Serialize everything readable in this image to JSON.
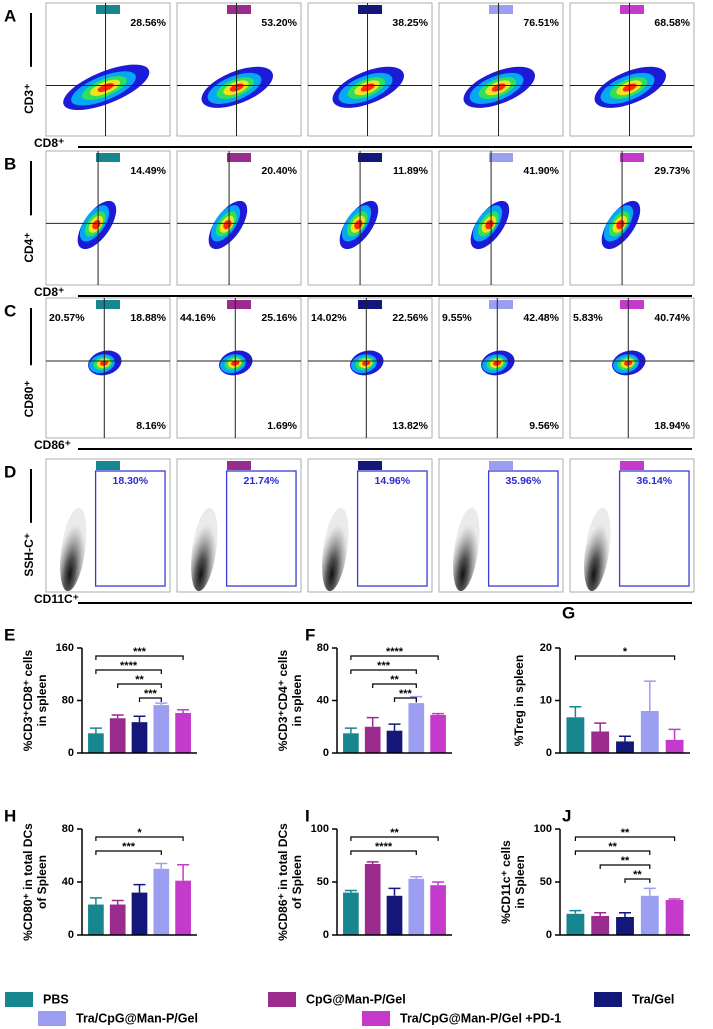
{
  "legend": [
    {
      "name": "PBS",
      "color": "#17868f"
    },
    {
      "name": "CpG@Man-P/Gel",
      "color": "#9b2c8e"
    },
    {
      "name": "Tra/Gel",
      "color": "#14177a"
    },
    {
      "name": "Tra/CpG@Man-P/Gel",
      "color": "#9c9ef2"
    },
    {
      "name": "Tra/CpG@Man-P/Gel +PD-1",
      "color": "#c43acb"
    }
  ],
  "flow_rows": [
    {
      "panel": "A",
      "y_label": "CD3⁺",
      "x_label": "CD8⁺",
      "plots": [
        {
          "upper_right": "28.56%"
        },
        {
          "upper_right": "53.20%"
        },
        {
          "upper_right": "38.25%"
        },
        {
          "upper_right": "76.51%"
        },
        {
          "upper_right": "68.58%"
        }
      ]
    },
    {
      "panel": "B",
      "y_label": "CD4⁺",
      "x_label": "CD8⁺",
      "plots": [
        {
          "upper_right": "14.49%"
        },
        {
          "upper_right": "20.40%"
        },
        {
          "upper_right": "11.89%"
        },
        {
          "upper_right": "41.90%"
        },
        {
          "upper_right": "29.73%"
        }
      ]
    },
    {
      "panel": "C",
      "y_label": "CD80⁺",
      "x_label": "CD86⁺",
      "plots": [
        {
          "upper_left": "20.57%",
          "upper_right": "18.88%",
          "lower_right": "8.16%"
        },
        {
          "upper_left": "44.16%",
          "upper_right": "25.16%",
          "lower_right": "1.69%"
        },
        {
          "upper_left": "14.02%",
          "upper_right": "22.56%",
          "lower_right": "13.82%"
        },
        {
          "upper_left": "9.55%",
          "upper_right": "42.48%",
          "lower_right": "9.56%"
        },
        {
          "upper_left": "5.83%",
          "upper_right": "40.74%",
          "lower_right": "18.94%"
        }
      ]
    },
    {
      "panel": "D",
      "y_label": "SSH-C⁺",
      "x_label": "CD11C⁺",
      "plots": [
        {
          "gate": "18.30%"
        },
        {
          "gate": "21.74%"
        },
        {
          "gate": "14.96%"
        },
        {
          "gate": "35.96%"
        },
        {
          "gate": "36.14%"
        }
      ]
    }
  ],
  "chart_data": [
    {
      "type": "bar",
      "panel": "E",
      "y_label": [
        "%CD3⁺CD8⁺ cells",
        "in spleen"
      ],
      "values": [
        30,
        53,
        47,
        73,
        61
      ],
      "errors": [
        8,
        5,
        9,
        3,
        5
      ],
      "ylim": [
        0,
        160
      ],
      "yticks": [
        0,
        80,
        160
      ],
      "significance": [
        {
          "from": 0,
          "to": 4,
          "label": "***"
        },
        {
          "from": 0,
          "to": 3,
          "label": "****"
        },
        {
          "from": 1,
          "to": 3,
          "label": "**"
        },
        {
          "from": 2,
          "to": 3,
          "label": "***"
        }
      ]
    },
    {
      "type": "bar",
      "panel": "F",
      "y_label": [
        "%CD3⁺CD4⁺ cells",
        "in spleen"
      ],
      "values": [
        15,
        20,
        17,
        38,
        29
      ],
      "errors": [
        4,
        7,
        5,
        5,
        1
      ],
      "ylim": [
        0,
        80
      ],
      "yticks": [
        0,
        40,
        80
      ],
      "significance": [
        {
          "from": 0,
          "to": 4,
          "label": "****"
        },
        {
          "from": 0,
          "to": 3,
          "label": "***"
        },
        {
          "from": 1,
          "to": 3,
          "label": "**"
        },
        {
          "from": 2,
          "to": 3,
          "label": "***"
        }
      ]
    },
    {
      "type": "bar",
      "panel": "G",
      "y_label": [
        "%Treg in spleen"
      ],
      "values": [
        6.8,
        4.1,
        2.2,
        8,
        2.5
      ],
      "errors": [
        2,
        1.6,
        1,
        5.7,
        2
      ],
      "ylim": [
        0,
        20
      ],
      "yticks": [
        0,
        10,
        20
      ],
      "significance": [
        {
          "from": 0,
          "to": 4,
          "label": "*"
        }
      ]
    },
    {
      "type": "bar",
      "panel": "H",
      "y_label": [
        "%CD80⁺ in total DCs",
        "of Spleen"
      ],
      "values": [
        23,
        23,
        32,
        50,
        41
      ],
      "errors": [
        5,
        3,
        6,
        4,
        12
      ],
      "ylim": [
        0,
        80
      ],
      "yticks": [
        0,
        40,
        80
      ],
      "significance": [
        {
          "from": 0,
          "to": 4,
          "label": "*"
        },
        {
          "from": 0,
          "to": 3,
          "label": "***"
        }
      ]
    },
    {
      "type": "bar",
      "panel": "I",
      "y_label": [
        "%CD86⁺ in total DCs",
        "of Spleen"
      ],
      "values": [
        40,
        67,
        37,
        53,
        47
      ],
      "errors": [
        2,
        2,
        7,
        2,
        3
      ],
      "ylim": [
        0,
        100
      ],
      "yticks": [
        0,
        50,
        100
      ],
      "significance": [
        {
          "from": 0,
          "to": 4,
          "label": "**"
        },
        {
          "from": 0,
          "to": 3,
          "label": "****"
        }
      ]
    },
    {
      "type": "bar",
      "panel": "J",
      "y_label": [
        "%CD11c⁺ cells",
        "in Spleen"
      ],
      "values": [
        20,
        18,
        17,
        37,
        33
      ],
      "errors": [
        3,
        3,
        4,
        7,
        1
      ],
      "ylim": [
        0,
        100
      ],
      "yticks": [
        0,
        50,
        100
      ],
      "significance": [
        {
          "from": 0,
          "to": 4,
          "label": "**"
        },
        {
          "from": 0,
          "to": 3,
          "label": "**"
        },
        {
          "from": 1,
          "to": 3,
          "label": "**"
        },
        {
          "from": 2,
          "to": 3,
          "label": "**"
        }
      ]
    }
  ]
}
